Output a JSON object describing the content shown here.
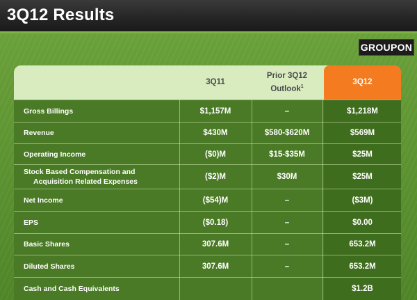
{
  "slide": {
    "title": "3Q12 Results",
    "logo_text": "GROUPON"
  },
  "table": {
    "columns": [
      {
        "label": "3Q11",
        "footnote": ""
      },
      {
        "label": "Prior 3Q12 Outlook",
        "label_line1": "Prior 3Q12",
        "label_line2": "Outlook",
        "footnote": "1"
      },
      {
        "label": "3Q12",
        "footnote": ""
      }
    ],
    "rows": [
      {
        "label": "Gross Billings",
        "values": [
          "$1,157M",
          "–",
          "$1,218M"
        ]
      },
      {
        "label": "Revenue",
        "values": [
          "$430M",
          "$580-$620M",
          "$569M"
        ]
      },
      {
        "label": "Operating Income",
        "values": [
          "($0)M",
          "$15-$35M",
          "$25M"
        ]
      },
      {
        "label": "Stock Based Compensation and Acquisition Related Expenses",
        "label_line1": "Stock Based Compensation and",
        "label_line2": "Acquisition Related Expenses",
        "values": [
          "($2)M",
          "$30M",
          "$25M"
        ]
      },
      {
        "label": "Net Income",
        "values": [
          "($54)M",
          "–",
          "($3M)"
        ]
      },
      {
        "label": "EPS",
        "values": [
          "($0.18)",
          "–",
          "$0.00"
        ]
      },
      {
        "label": "Basic Shares",
        "values": [
          "307.6M",
          "–",
          "653.2M"
        ]
      },
      {
        "label": "Diluted Shares",
        "values": [
          "307.6M",
          "–",
          "653.2M"
        ]
      },
      {
        "label": "Cash and Cash Equivalents",
        "values": [
          "",
          "",
          "$1.2B"
        ]
      }
    ]
  },
  "colors": {
    "header_bar": "#262626",
    "accent_orange": "#f47b1f",
    "table_header_bg": "#d9ecc0",
    "table_body_bg": "#4a7a26",
    "background_green": "#5f9432"
  }
}
